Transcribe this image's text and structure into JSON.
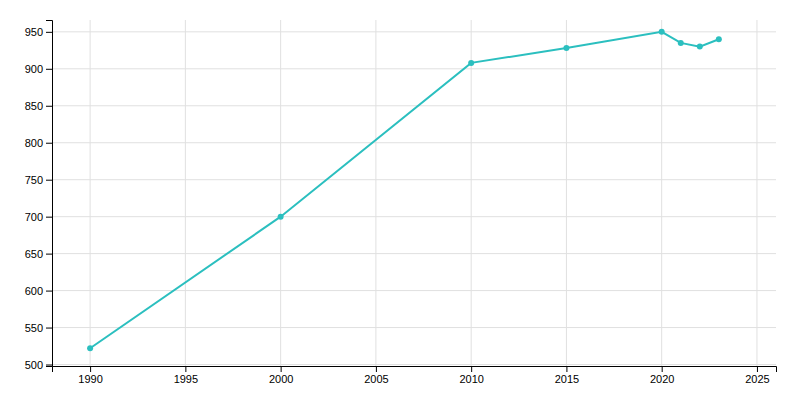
{
  "chart_data": {
    "type": "line",
    "x": [
      1990,
      2000,
      2010,
      2015,
      2020,
      2021,
      2022,
      2023
    ],
    "values": [
      522,
      700,
      908,
      928,
      950,
      935,
      930,
      940
    ],
    "color": "#2bbfbf",
    "marker": "circle",
    "xlim": [
      1988,
      2026
    ],
    "ylim": [
      498,
      966
    ],
    "xticks": [
      1990,
      1995,
      2000,
      2005,
      2010,
      2015,
      2020,
      2025
    ],
    "yticks": [
      500,
      550,
      600,
      650,
      700,
      750,
      800,
      850,
      900,
      950
    ],
    "grid": true
  }
}
